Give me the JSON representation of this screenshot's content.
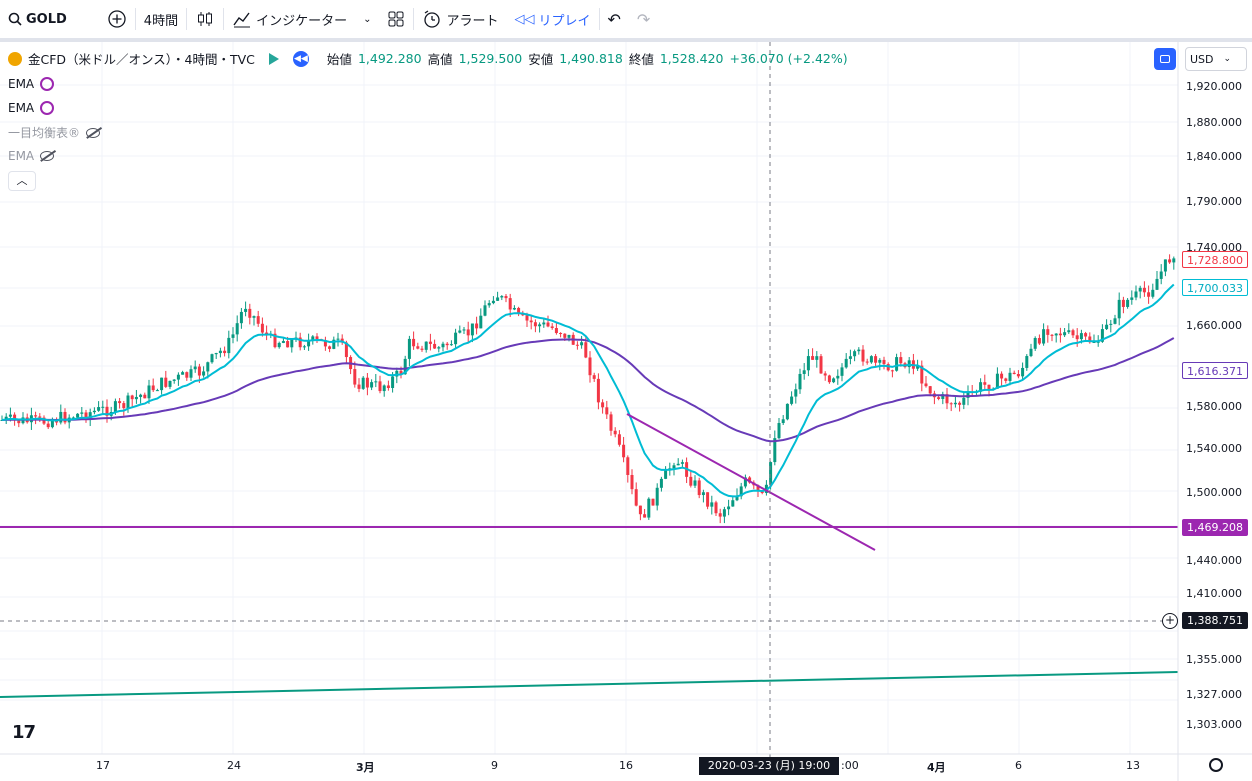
{
  "toolbar": {
    "symbol": "GOLD",
    "interval": "4時間",
    "indicators": "インジケーター",
    "alert": "アラート",
    "replay": "リプレイ"
  },
  "legend": {
    "title": "金CFD（米ドル／オンス）・4時間・TVC",
    "open_label": "始値",
    "open": "1,492.280",
    "high_label": "高値",
    "high": "1,529.500",
    "low_label": "安値",
    "low": "1,490.818",
    "close_label": "終値",
    "close": "1,528.420",
    "change": "+36.070 (+2.42%)"
  },
  "indicators": [
    {
      "name": "EMA",
      "visible": true
    },
    {
      "name": "EMA",
      "visible": true
    },
    {
      "name": "一目均衡表®",
      "visible": false
    },
    {
      "name": "EMA",
      "visible": false
    }
  ],
  "currency": "USD",
  "price_axis": [
    "1,920.000",
    "1,880.000",
    "1,840.000",
    "1,790.000",
    "1,740.000",
    "1,660.000",
    "1,580.000",
    "1,540.000",
    "1,500.000",
    "1,440.000",
    "1,410.000",
    "1,355.000",
    "1,327.000",
    "1,303.000"
  ],
  "price_tags": [
    {
      "id": "last",
      "text": "1,728.800",
      "color": "#f23645"
    },
    {
      "id": "ema_fast",
      "text": "1,700.033",
      "color": "#00bcd4"
    },
    {
      "id": "ema_slow",
      "text": "1,616.371",
      "color": "#673ab7"
    },
    {
      "id": "hline",
      "text": "1,469.208",
      "color": "#9c27b0"
    },
    {
      "id": "crosshair",
      "text": "1,388.751",
      "color": "#131722"
    }
  ],
  "time_axis": [
    "17",
    "24",
    "3月",
    "9",
    "16",
    "4月",
    "6",
    "13"
  ],
  "crosshair_time": "2020-03-23 (月)  19:00",
  "crosshair_time_tail": ":00",
  "colors": {
    "up": "#089981",
    "down": "#f23645",
    "ema_fast": "#00bcd4",
    "ema_slow": "#673ab7",
    "trend": "#9c27b0",
    "long_line": "#089981"
  }
}
